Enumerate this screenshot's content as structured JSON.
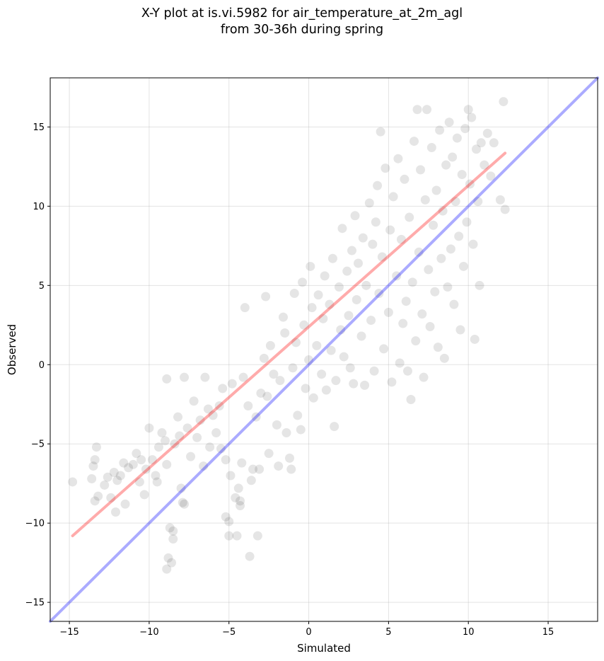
{
  "chart_data": {
    "type": "scatter",
    "title": "X-Y plot at is.vi.5982 for air_temperature_at_2m_agl",
    "subtitle": "from 30-36h during spring",
    "xlabel": "Simulated",
    "ylabel": "Observed",
    "xlim": [
      -16.2,
      18.1
    ],
    "ylim": [
      -16.2,
      18.1
    ],
    "x_ticks": [
      -15,
      -10,
      -5,
      0,
      5,
      10,
      15
    ],
    "y_ticks": [
      -15,
      -10,
      -5,
      0,
      5,
      10,
      15
    ],
    "x_tick_labels": [
      "−15",
      "−10",
      "−5",
      "0",
      "5",
      "10",
      "15"
    ],
    "y_tick_labels": [
      "−15",
      "−10",
      "−5",
      "0",
      "5",
      "10",
      "15"
    ],
    "grid": true,
    "point_color": "#000000",
    "lines": [
      {
        "role": "one-to-one",
        "color": "#0000ff",
        "x": [
          -16.2,
          18.1
        ],
        "y": [
          -16.2,
          18.1
        ]
      },
      {
        "role": "regression-fit",
        "color": "#ff0000",
        "x": [
          -14.8,
          12.3
        ],
        "y": [
          -10.8,
          13.35
        ]
      }
    ],
    "points": [
      [
        -14.8,
        -7.4
      ],
      [
        -13.6,
        -7.2
      ],
      [
        -13.4,
        -6.0
      ],
      [
        -13.3,
        -5.2
      ],
      [
        -13.5,
        -6.4
      ],
      [
        -13.4,
        -8.6
      ],
      [
        -13.2,
        -8.3
      ],
      [
        -12.8,
        -7.6
      ],
      [
        -12.6,
        -7.1
      ],
      [
        -12.4,
        -8.4
      ],
      [
        -12.2,
        -6.8
      ],
      [
        -12.0,
        -7.3
      ],
      [
        -12.1,
        -9.3
      ],
      [
        -11.8,
        -7.0
      ],
      [
        -11.6,
        -6.2
      ],
      [
        -11.5,
        -8.8
      ],
      [
        -11.3,
        -6.5
      ],
      [
        -11.0,
        -6.3
      ],
      [
        -10.8,
        -5.6
      ],
      [
        -10.6,
        -7.4
      ],
      [
        -10.5,
        -6.0
      ],
      [
        -10.2,
        -6.6
      ],
      [
        -10.3,
        -8.2
      ],
      [
        -10.0,
        -4.0
      ],
      [
        -9.8,
        -6.0
      ],
      [
        -9.6,
        -7.0
      ],
      [
        -9.4,
        -5.2
      ],
      [
        -9.5,
        -7.4
      ],
      [
        -9.2,
        -4.3
      ],
      [
        -9.0,
        -4.8
      ],
      [
        -8.9,
        -6.3
      ],
      [
        -8.9,
        -0.9
      ],
      [
        -8.7,
        -10.3
      ],
      [
        -8.8,
        -12.2
      ],
      [
        -8.5,
        -10.5
      ],
      [
        -8.5,
        -11.0
      ],
      [
        -8.9,
        -12.9
      ],
      [
        -8.6,
        -12.5
      ],
      [
        -8.4,
        -5.0
      ],
      [
        -8.2,
        -3.3
      ],
      [
        -8.1,
        -4.5
      ],
      [
        -8.0,
        -7.8
      ],
      [
        -7.9,
        -8.7
      ],
      [
        -7.8,
        -8.8
      ],
      [
        -7.8,
        -0.8
      ],
      [
        -7.6,
        -4.0
      ],
      [
        -7.4,
        -5.8
      ],
      [
        -7.2,
        -2.3
      ],
      [
        -7.0,
        -4.6
      ],
      [
        -6.8,
        -3.5
      ],
      [
        -6.6,
        -6.4
      ],
      [
        -6.5,
        -0.8
      ],
      [
        -6.3,
        -2.8
      ],
      [
        -6.2,
        -5.2
      ],
      [
        -6.0,
        -3.2
      ],
      [
        -5.8,
        -4.3
      ],
      [
        -5.6,
        -2.6
      ],
      [
        -5.5,
        -5.3
      ],
      [
        -5.4,
        -1.5
      ],
      [
        -5.2,
        -6.0
      ],
      [
        -5.2,
        -9.6
      ],
      [
        -5.0,
        -9.9
      ],
      [
        -5.0,
        -10.8
      ],
      [
        -4.9,
        -7.0
      ],
      [
        -4.8,
        -1.2
      ],
      [
        -4.6,
        -8.4
      ],
      [
        -4.5,
        -10.8
      ],
      [
        -4.4,
        -7.8
      ],
      [
        -4.3,
        -8.6
      ],
      [
        -4.3,
        -8.9
      ],
      [
        -4.2,
        -6.2
      ],
      [
        -4.1,
        -0.8
      ],
      [
        -4.0,
        3.6
      ],
      [
        -3.8,
        -2.6
      ],
      [
        -3.7,
        -12.1
      ],
      [
        -3.6,
        -7.3
      ],
      [
        -3.5,
        -6.6
      ],
      [
        -3.3,
        -3.3
      ],
      [
        -3.2,
        -10.8
      ],
      [
        -3.1,
        -6.6
      ],
      [
        -3.0,
        -1.8
      ],
      [
        -2.8,
        0.4
      ],
      [
        -2.7,
        4.3
      ],
      [
        -2.6,
        -2.0
      ],
      [
        -2.5,
        -5.6
      ],
      [
        -2.4,
        1.2
      ],
      [
        -2.2,
        -0.6
      ],
      [
        -2.0,
        -3.8
      ],
      [
        -1.9,
        -6.4
      ],
      [
        -1.8,
        -1.0
      ],
      [
        -1.6,
        3.0
      ],
      [
        -1.5,
        2.0
      ],
      [
        -1.4,
        -4.3
      ],
      [
        -1.2,
        -5.9
      ],
      [
        -1.1,
        -6.6
      ],
      [
        -1.0,
        -0.2
      ],
      [
        -0.9,
        4.5
      ],
      [
        -0.8,
        1.4
      ],
      [
        -0.7,
        -3.2
      ],
      [
        -0.5,
        -4.1
      ],
      [
        -0.4,
        5.2
      ],
      [
        -0.3,
        2.5
      ],
      [
        -0.2,
        -1.5
      ],
      [
        0.0,
        0.3
      ],
      [
        0.1,
        6.2
      ],
      [
        0.2,
        3.6
      ],
      [
        0.3,
        -2.1
      ],
      [
        0.5,
        1.2
      ],
      [
        0.6,
        4.4
      ],
      [
        0.8,
        -0.6
      ],
      [
        0.9,
        2.9
      ],
      [
        1.0,
        5.6
      ],
      [
        1.1,
        -1.6
      ],
      [
        1.3,
        3.8
      ],
      [
        1.4,
        0.9
      ],
      [
        1.5,
        6.7
      ],
      [
        1.6,
        -3.9
      ],
      [
        1.7,
        -1.0
      ],
      [
        1.9,
        4.9
      ],
      [
        2.0,
        2.2
      ],
      [
        2.1,
        8.6
      ],
      [
        2.2,
        0.5
      ],
      [
        2.4,
        5.9
      ],
      [
        2.5,
        3.1
      ],
      [
        2.6,
        -0.2
      ],
      [
        2.7,
        7.2
      ],
      [
        2.8,
        -1.2
      ],
      [
        2.9,
        9.4
      ],
      [
        3.0,
        4.1
      ],
      [
        3.1,
        6.4
      ],
      [
        3.3,
        1.8
      ],
      [
        3.4,
        8.0
      ],
      [
        3.5,
        -1.3
      ],
      [
        3.6,
        5.0
      ],
      [
        3.8,
        10.2
      ],
      [
        3.9,
        2.8
      ],
      [
        4.0,
        7.6
      ],
      [
        4.1,
        -0.4
      ],
      [
        4.2,
        9.0
      ],
      [
        4.3,
        11.3
      ],
      [
        4.4,
        4.5
      ],
      [
        4.5,
        14.7
      ],
      [
        4.6,
        6.8
      ],
      [
        4.7,
        1.0
      ],
      [
        4.8,
        12.4
      ],
      [
        5.0,
        3.3
      ],
      [
        5.1,
        8.5
      ],
      [
        5.2,
        -1.1
      ],
      [
        5.3,
        10.6
      ],
      [
        5.5,
        5.6
      ],
      [
        5.6,
        13.0
      ],
      [
        5.7,
        0.1
      ],
      [
        5.8,
        7.9
      ],
      [
        5.9,
        2.6
      ],
      [
        6.0,
        11.7
      ],
      [
        6.1,
        4.0
      ],
      [
        6.2,
        -0.4
      ],
      [
        6.3,
        9.3
      ],
      [
        6.4,
        -2.2
      ],
      [
        6.5,
        5.2
      ],
      [
        6.6,
        14.1
      ],
      [
        6.7,
        1.5
      ],
      [
        6.8,
        16.1
      ],
      [
        6.9,
        7.1
      ],
      [
        7.0,
        12.3
      ],
      [
        7.1,
        3.2
      ],
      [
        7.2,
        -0.8
      ],
      [
        7.3,
        10.4
      ],
      [
        7.4,
        16.1
      ],
      [
        7.5,
        6.0
      ],
      [
        7.6,
        2.4
      ],
      [
        7.7,
        13.7
      ],
      [
        7.8,
        8.8
      ],
      [
        7.9,
        4.6
      ],
      [
        8.0,
        11.0
      ],
      [
        8.1,
        1.1
      ],
      [
        8.2,
        14.8
      ],
      [
        8.3,
        6.7
      ],
      [
        8.4,
        9.7
      ],
      [
        8.5,
        0.4
      ],
      [
        8.6,
        12.6
      ],
      [
        8.7,
        4.9
      ],
      [
        8.8,
        15.3
      ],
      [
        8.9,
        7.3
      ],
      [
        9.0,
        13.1
      ],
      [
        9.1,
        3.8
      ],
      [
        9.2,
        10.3
      ],
      [
        9.3,
        14.3
      ],
      [
        9.4,
        8.1
      ],
      [
        9.5,
        2.2
      ],
      [
        9.6,
        12.0
      ],
      [
        9.7,
        6.2
      ],
      [
        9.8,
        14.9
      ],
      [
        9.9,
        9.0
      ],
      [
        10.0,
        16.1
      ],
      [
        10.1,
        11.4
      ],
      [
        10.2,
        15.6
      ],
      [
        10.3,
        7.6
      ],
      [
        10.4,
        1.6
      ],
      [
        10.5,
        13.6
      ],
      [
        10.6,
        10.3
      ],
      [
        10.7,
        5.0
      ],
      [
        10.8,
        14.0
      ],
      [
        11.0,
        12.6
      ],
      [
        11.2,
        14.6
      ],
      [
        11.4,
        11.9
      ],
      [
        11.6,
        14.0
      ],
      [
        12.0,
        10.4
      ],
      [
        12.2,
        16.6
      ],
      [
        12.3,
        9.8
      ]
    ]
  }
}
